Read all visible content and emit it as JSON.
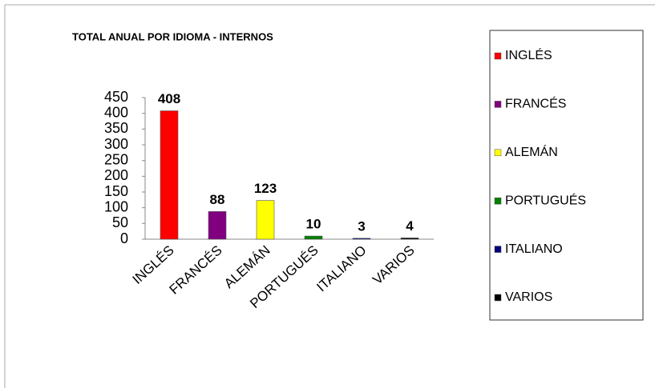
{
  "chart_data": {
    "type": "bar",
    "title": "TOTAL ANUAL POR IDIOMA - INTERNOS",
    "categories": [
      "INGLÉS",
      "FRANCÉS",
      "ALEMÁN",
      "PORTUGUÉS",
      "ITALIANO",
      "VARIOS"
    ],
    "values": [
      408,
      88,
      123,
      10,
      3,
      4
    ],
    "colors": [
      "#ff0000",
      "#800080",
      "#ffff00",
      "#008000",
      "#000080",
      "#000000"
    ],
    "ylim": [
      0,
      450
    ],
    "yticks": [
      0,
      50,
      100,
      150,
      200,
      250,
      300,
      350,
      400,
      450
    ],
    "legend": "right"
  }
}
